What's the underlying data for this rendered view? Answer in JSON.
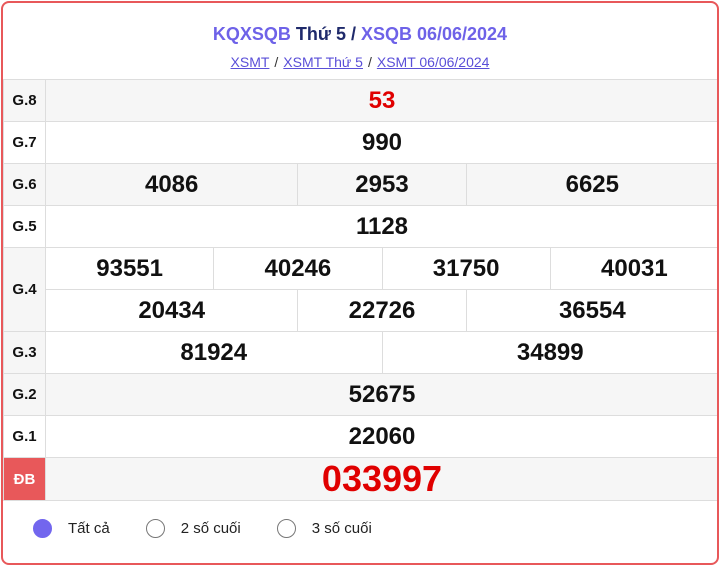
{
  "header": {
    "title_part1": "KQXSQB",
    "title_part2": " Thứ 5 / ",
    "title_part3": "XSQB 06/06/2024"
  },
  "breadcrumbs": [
    "XSMT",
    "XSMT Thứ 5",
    "XSMT 06/06/2024"
  ],
  "breadcrumb_separator": "/",
  "prizes": [
    {
      "label": "G.8",
      "numbers": [
        "53"
      ]
    },
    {
      "label": "G.7",
      "numbers": [
        "990"
      ]
    },
    {
      "label": "G.6",
      "numbers": [
        "4086",
        "2953",
        "6625"
      ]
    },
    {
      "label": "G.5",
      "numbers": [
        "1128"
      ]
    },
    {
      "label": "G.4",
      "numbers": [
        "93551",
        "40246",
        "31750",
        "40031",
        "20434",
        "22726",
        "36554"
      ]
    },
    {
      "label": "G.3",
      "numbers": [
        "81924",
        "34899"
      ]
    },
    {
      "label": "G.2",
      "numbers": [
        "52675"
      ]
    },
    {
      "label": "G.1",
      "numbers": [
        "22060"
      ]
    },
    {
      "label": "ĐB",
      "numbers": [
        "033997"
      ]
    }
  ],
  "filter": {
    "options": [
      "Tất cả",
      "2 số cuối",
      "3 số cuối"
    ],
    "selected": "Tất cả"
  },
  "colors": {
    "accent": "#6e62e8",
    "special": "#e00000",
    "border": "#e8585a"
  }
}
